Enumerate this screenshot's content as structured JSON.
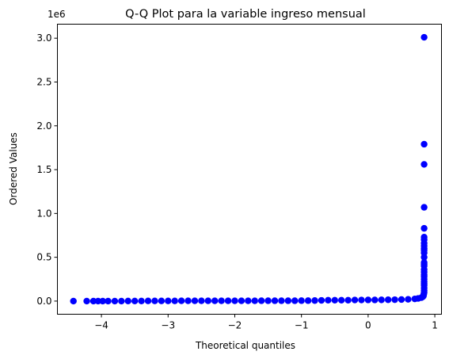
{
  "chart_data": {
    "type": "scatter",
    "title": "Q-Q Plot para la variable ingreso mensual",
    "xlabel": "Theoretical quantiles",
    "ylabel": "Ordered Values",
    "y_offset_label": "1e6",
    "xlim": [
      -4.66,
      1.1
    ],
    "ylim": [
      -0.15,
      3.16
    ],
    "x_ticks": [
      -4,
      -3,
      -2,
      -1,
      0,
      1
    ],
    "x_tick_labels": [
      "−4",
      "−3",
      "−2",
      "−1",
      "0",
      "1"
    ],
    "y_ticks": [
      0.0,
      0.5,
      1.0,
      1.5,
      2.0,
      2.5,
      3.0
    ],
    "y_tick_labels": [
      "0.0",
      "0.5",
      "1.0",
      "1.5",
      "2.0",
      "2.5",
      "3.0"
    ],
    "grid": false,
    "legend": "none",
    "marker_color": "#0000ff",
    "series": [
      {
        "x": [
          -4.42,
          -4.22,
          -4.12,
          -4.05,
          -3.98,
          -3.9,
          -3.8,
          -3.7,
          -3.6,
          -3.5,
          -3.4,
          -3.3,
          -3.2,
          -3.1,
          -3.0,
          -2.9,
          -2.8,
          -2.7,
          -2.6,
          -2.5,
          -2.4,
          -2.3,
          -2.2,
          -2.1,
          -2.0,
          -1.9,
          -1.8,
          -1.7,
          -1.6,
          -1.5,
          -1.4,
          -1.3,
          -1.2,
          -1.1,
          -1.0,
          -0.9,
          -0.8,
          -0.7,
          -0.6,
          -0.5,
          -0.4,
          -0.3,
          -0.2,
          -0.1,
          0.0,
          0.1,
          0.2,
          0.3,
          0.4,
          0.5,
          0.6,
          0.7,
          0.75,
          0.8,
          0.82,
          0.83,
          0.835,
          0.84,
          0.84,
          0.84,
          0.84,
          0.84,
          0.84,
          0.84,
          0.84,
          0.84,
          0.84,
          0.84,
          0.84,
          0.84,
          0.84,
          0.84,
          0.84,
          0.84,
          0.84,
          0.84,
          0.84,
          0.84,
          0.84,
          0.84,
          0.84,
          0.84,
          0.84,
          0.84
        ],
        "y": [
          0.0,
          0.0,
          0.0,
          0.0,
          0.0,
          0.0,
          0.0,
          0.0,
          0.001,
          0.001,
          0.001,
          0.002,
          0.002,
          0.002,
          0.002,
          0.002,
          0.003,
          0.003,
          0.003,
          0.003,
          0.003,
          0.003,
          0.003,
          0.003,
          0.003,
          0.003,
          0.003,
          0.003,
          0.004,
          0.004,
          0.004,
          0.004,
          0.004,
          0.004,
          0.005,
          0.005,
          0.006,
          0.008,
          0.01,
          0.01,
          0.01,
          0.01,
          0.012,
          0.012,
          0.013,
          0.013,
          0.014,
          0.015,
          0.016,
          0.018,
          0.02,
          0.025,
          0.03,
          0.04,
          0.05,
          0.06,
          0.08,
          0.1,
          0.12,
          0.15,
          0.18,
          0.2,
          0.22,
          0.25,
          0.28,
          0.3,
          0.33,
          0.36,
          0.4,
          0.42,
          0.44,
          0.5,
          0.55,
          0.58,
          0.6,
          0.63,
          0.66,
          0.7,
          0.73,
          0.83,
          1.07,
          1.56,
          1.79,
          3.01
        ]
      }
    ]
  }
}
